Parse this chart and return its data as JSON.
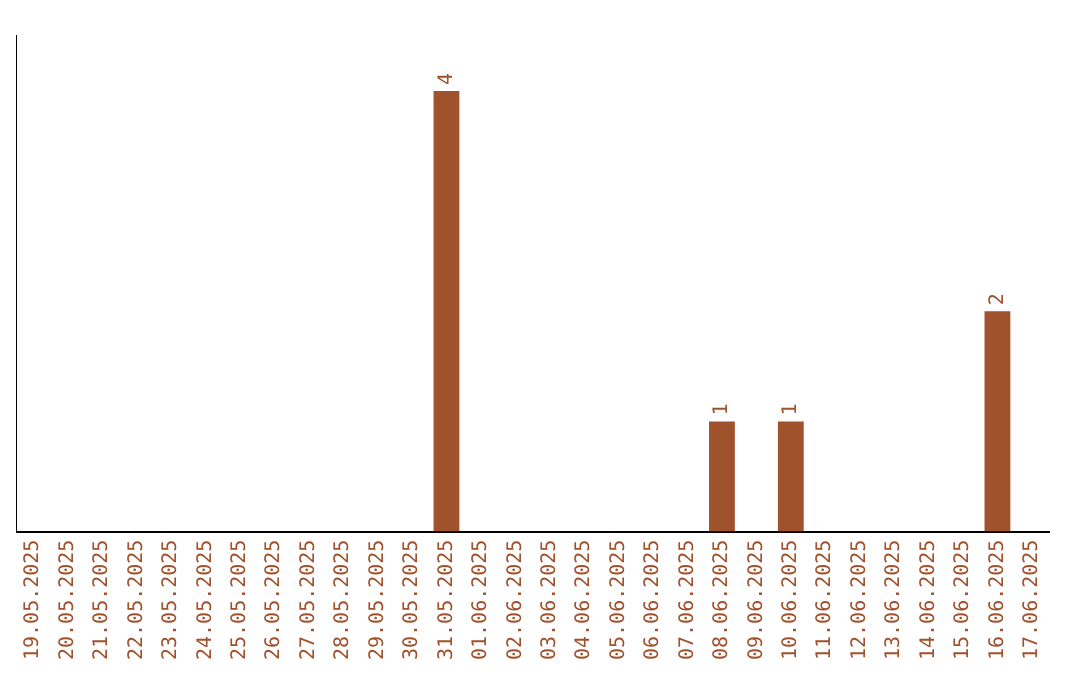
{
  "chart_data": {
    "type": "bar",
    "categories": [
      "19.05.2025",
      "20.05.2025",
      "21.05.2025",
      "22.05.2025",
      "23.05.2025",
      "24.05.2025",
      "25.05.2025",
      "26.05.2025",
      "27.05.2025",
      "28.05.2025",
      "29.05.2025",
      "30.05.2025",
      "31.05.2025",
      "01.06.2025",
      "02.06.2025",
      "03.06.2025",
      "04.06.2025",
      "05.06.2025",
      "06.06.2025",
      "07.06.2025",
      "08.06.2025",
      "09.06.2025",
      "10.06.2025",
      "11.06.2025",
      "12.06.2025",
      "13.06.2025",
      "14.06.2025",
      "15.06.2025",
      "16.06.2025",
      "17.06.2025"
    ],
    "values": [
      null,
      null,
      null,
      null,
      null,
      null,
      null,
      null,
      null,
      null,
      null,
      null,
      4,
      null,
      null,
      null,
      null,
      null,
      null,
      null,
      1,
      null,
      1,
      null,
      null,
      null,
      null,
      null,
      2,
      null
    ],
    "value_labels": [
      null,
      null,
      null,
      null,
      null,
      null,
      null,
      null,
      null,
      null,
      null,
      null,
      "4",
      null,
      null,
      null,
      null,
      null,
      null,
      null,
      "1",
      null,
      "1",
      null,
      null,
      null,
      null,
      null,
      "2",
      null
    ],
    "color": "#a0522d",
    "grid": false,
    "legend": false,
    "tick_labels": "x"
  }
}
